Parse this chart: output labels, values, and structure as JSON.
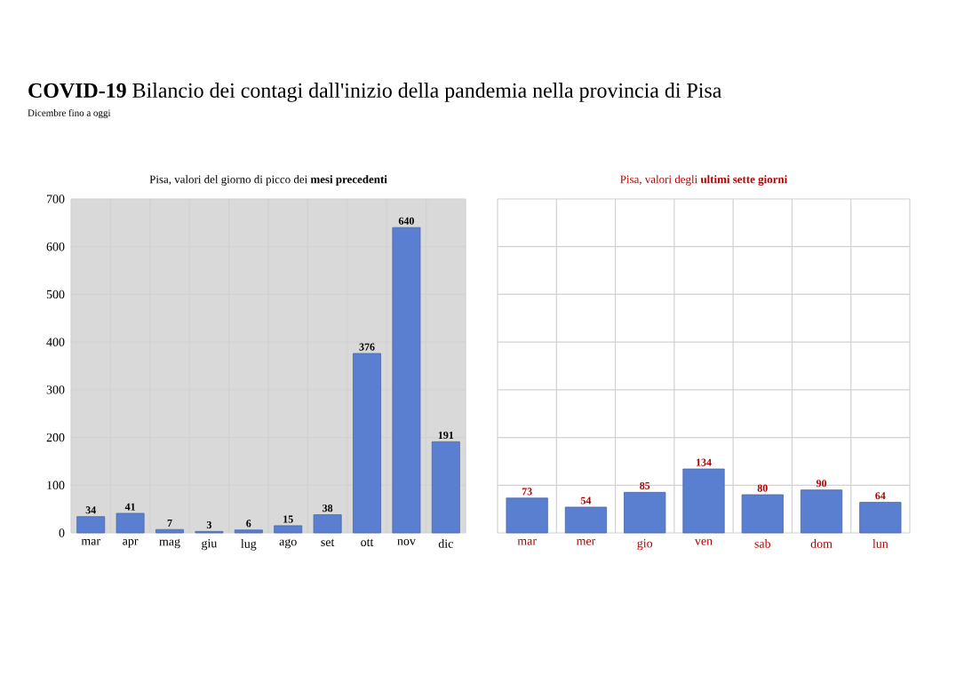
{
  "chart_data": [
    {
      "type": "other",
      "title": "**COVID-19** Bilancio dei contagi dall'inizio della pandemia nella provincia di Pisa",
      "subtitle": "Dicembre fino a oggi"
    },
    {
      "type": "bar",
      "title": "Pisa, valori del giorno di picco dei **mesi precedenti**",
      "categories": [
        "mar",
        "apr",
        "mag",
        "giu",
        "lug",
        "ago",
        "set",
        "ott",
        "nov",
        "dic"
      ],
      "values": [
        34,
        41,
        7,
        3,
        6,
        15,
        38,
        376,
        640,
        191
      ],
      "color": "#5b7fd0",
      "ylim": [
        0,
        700
      ],
      "yticks": [
        0,
        100,
        200,
        300,
        400,
        500,
        600,
        700
      ],
      "grid": true,
      "data_labels": true
    },
    {
      "type": "bar",
      "title": "Pisa, valori degli **ultimi sette giorni**",
      "categories": [
        "mar",
        "mer",
        "gio",
        "ven",
        "sab",
        "dom",
        "lun"
      ],
      "values": [
        73,
        54,
        85,
        134,
        80,
        90,
        64
      ],
      "color": "#5b7fd0",
      "ylim": [
        0,
        700
      ],
      "yticks": [
        0,
        100,
        200,
        300,
        400,
        500,
        600,
        700
      ],
      "grid": true,
      "data_labels": true,
      "tick_labels": "x"
    }
  ]
}
